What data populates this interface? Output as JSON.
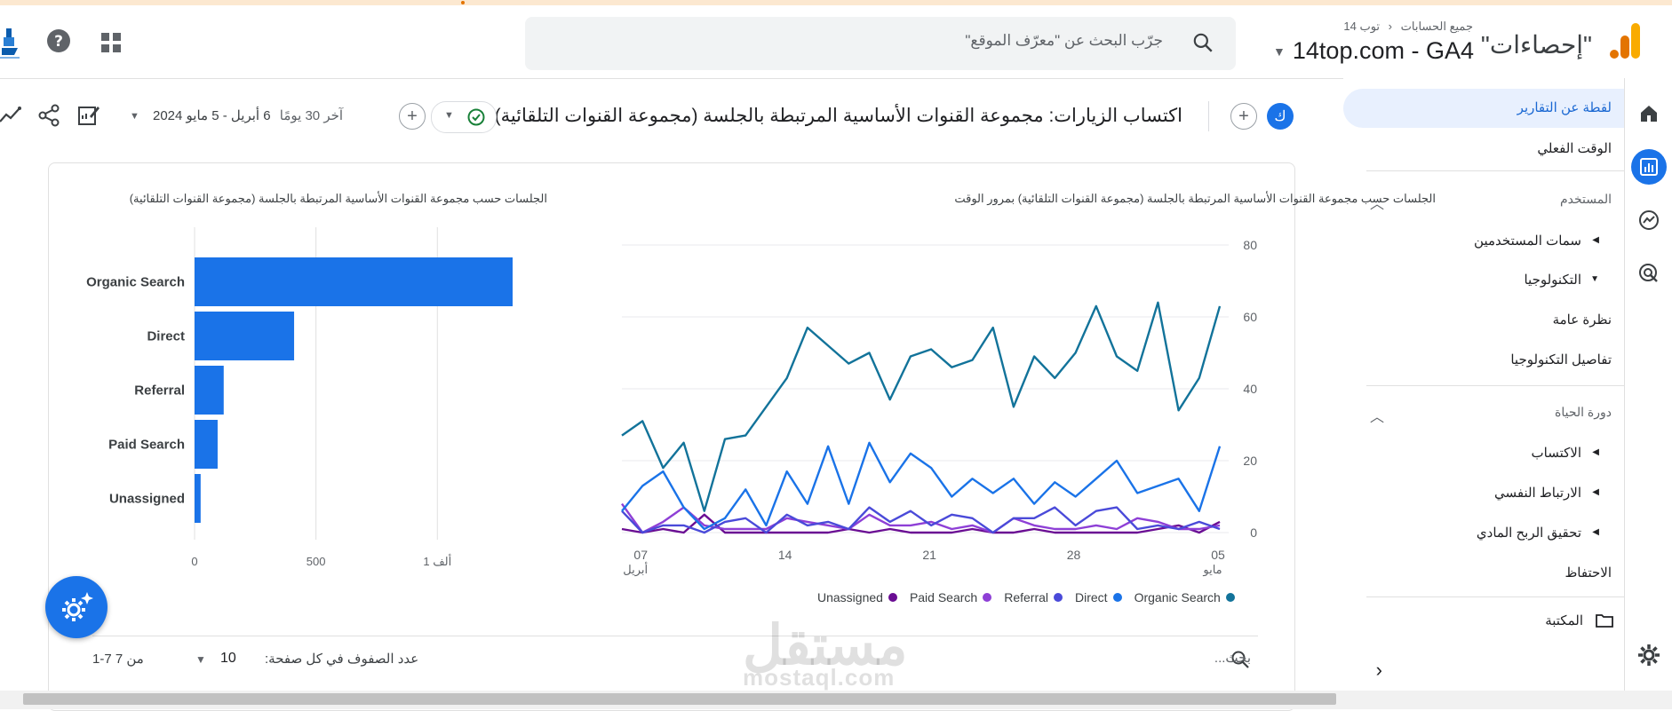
{
  "header": {
    "app_name": "\"إحصاءات\"",
    "breadcrumb_all_accounts": "جميع الحسابات",
    "breadcrumb_account": "توب 14",
    "property_name": "14top.com - GA4",
    "search_placeholder": "جرّب البحث عن \"معرّف الموقع\""
  },
  "sidebar": {
    "reports_snapshot": "لقطة عن التقارير",
    "realtime": "الوقت الفعلي",
    "user_section": "المستخدم",
    "user_attributes": "سمات المستخدمين",
    "tech": "التكنولوجيا",
    "overview": "نظرة عامة",
    "tech_details": "تفاصيل التكنولوجيا",
    "lifecycle_section": "دورة الحياة",
    "acquisition": "الاكتساب",
    "engagement": "الارتباط النفسي",
    "monetization": "تحقيق الربح المادي",
    "retention": "الاحتفاظ",
    "library": "المكتبة"
  },
  "toolbar": {
    "avatar_letter": "ك",
    "report_title": "اكتساب الزيارات: مجموعة القنوات الأساسية المرتبطة بالجلسة (مجموعة القنوات التلقائية)",
    "date_range_prefix": "آخر 30 يومًا",
    "date_range": "6 أبريل - 5 مايو 2024"
  },
  "colors": {
    "organic": "#12739a",
    "direct": "#1a73e8",
    "referral": "#4a4ad9",
    "paid": "#8e3fd6",
    "unassigned": "#6a0d93",
    "bar": "#1a73e8"
  },
  "chart_data": [
    {
      "type": "bar",
      "title": "الجلسات حسب مجموعة القنوات الأساسية المرتبطة بالجلسة (مجموعة القنوات التلقائية)",
      "orientation": "horizontal",
      "categories": [
        "Organic Search",
        "Direct",
        "Referral",
        "Paid Search",
        "Unassigned"
      ],
      "values": [
        1310,
        410,
        120,
        95,
        25
      ],
      "xlim": [
        0,
        1310
      ],
      "xticks": [
        0,
        500,
        1000
      ],
      "xtick_labels": [
        "0",
        "500",
        "1 ألف"
      ],
      "grid": true
    },
    {
      "type": "line",
      "title": "الجلسات حسب مجموعة القنوات الأساسية المرتبطة بالجلسة (مجموعة القنوات التلقائية) بمرور الوقت",
      "x_range": [
        "2024-04-06",
        "2024-05-05"
      ],
      "x_tick_labels": [
        {
          "label": "07",
          "sub": "أبريل"
        },
        {
          "label": "14",
          "sub": ""
        },
        {
          "label": "21",
          "sub": ""
        },
        {
          "label": "28",
          "sub": ""
        },
        {
          "label": "05",
          "sub": "مايو"
        }
      ],
      "ylim": [
        0,
        80
      ],
      "yticks": [
        0,
        20,
        40,
        60,
        80
      ],
      "legend_position": "bottom",
      "series": [
        {
          "name": "Organic Search",
          "values": [
            27,
            31,
            18,
            25,
            6,
            26,
            27,
            35,
            43,
            57,
            52,
            47,
            50,
            37,
            49,
            51,
            46,
            48,
            57,
            35,
            49,
            43,
            50,
            63,
            49,
            45,
            64,
            34,
            43,
            63
          ]
        },
        {
          "name": "Direct",
          "values": [
            6,
            13,
            17,
            7,
            1,
            4,
            12,
            2,
            17,
            8,
            24,
            8,
            25,
            14,
            22,
            18,
            10,
            15,
            11,
            15,
            8,
            14,
            10,
            15,
            20,
            11,
            13,
            15,
            6,
            24
          ]
        },
        {
          "name": "Referral",
          "values": [
            6,
            0,
            2,
            2,
            0,
            3,
            4,
            0,
            5,
            2,
            3,
            1,
            7,
            3,
            6,
            2,
            5,
            4,
            0,
            4,
            4,
            7,
            2,
            6,
            7,
            1,
            2,
            1,
            3,
            1
          ]
        },
        {
          "name": "Paid Search",
          "values": [
            8,
            0,
            3,
            7,
            2,
            1,
            1,
            1,
            4,
            3,
            2,
            1,
            5,
            2,
            2,
            3,
            1,
            2,
            0,
            4,
            2,
            1,
            1,
            2,
            1,
            4,
            3,
            1,
            1,
            2
          ]
        },
        {
          "name": "Unassigned",
          "values": [
            1,
            0,
            1,
            0,
            5,
            0,
            0,
            0,
            0,
            0,
            0,
            1,
            0,
            1,
            0,
            0,
            0,
            1,
            0,
            0,
            1,
            0,
            0,
            0,
            0,
            0,
            1,
            2,
            0,
            3
          ]
        }
      ]
    }
  ],
  "table_footer": {
    "search_placeholder": "بحث...",
    "rows_per_page_label": "عدد الصفوف في كل صفحة:",
    "rows_per_page": "10",
    "page_range": "1-7 من 7"
  },
  "watermark": {
    "ar": "مستقل",
    "en": "mostaql.com"
  }
}
